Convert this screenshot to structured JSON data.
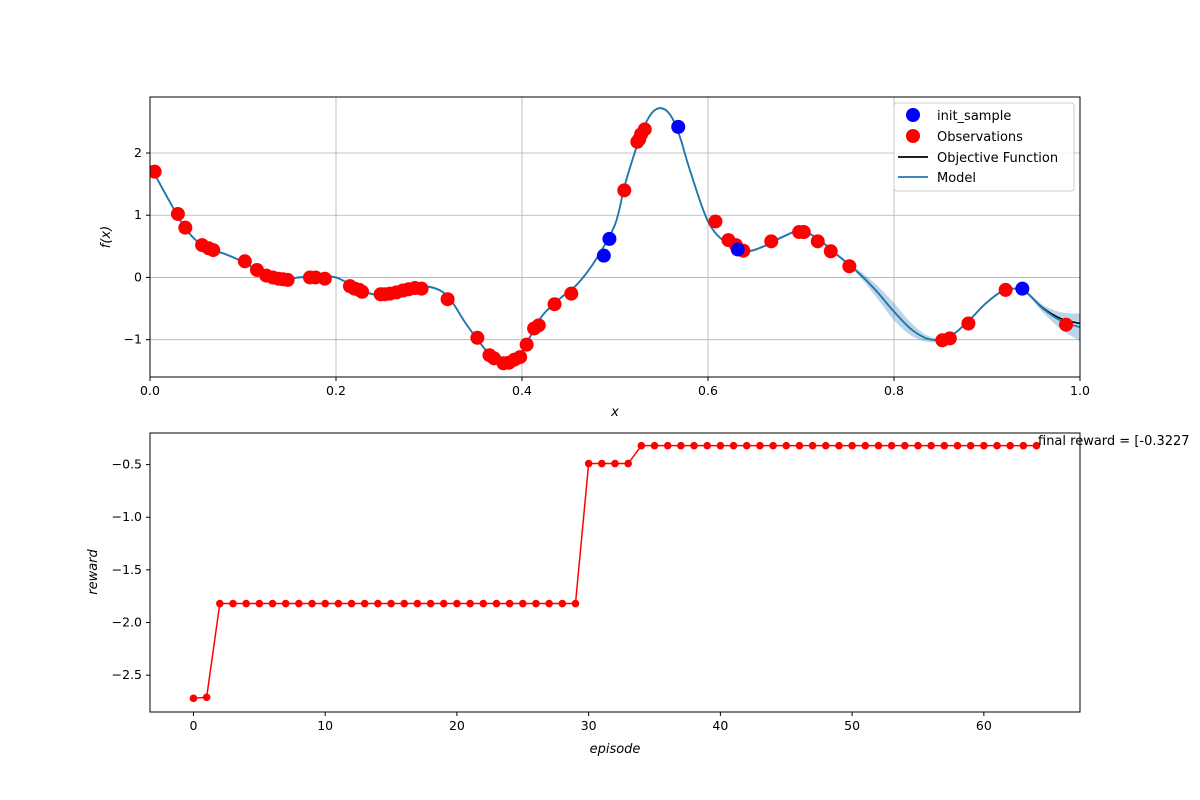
{
  "chart_data": [
    {
      "type": "line",
      "xlabel": "x",
      "ylabel": "f(x)",
      "xlim": [
        0.0,
        1.0
      ],
      "ylim": [
        -1.6,
        2.9
      ],
      "xticks": [
        "0.0",
        "0.2",
        "0.4",
        "0.6",
        "0.8",
        "1.0"
      ],
      "yticks": [
        "−1",
        "0",
        "1",
        "2"
      ],
      "grid": true,
      "legend_position": "top-right",
      "legend": [
        "init_sample",
        "Observations",
        "Objective Function",
        "Model"
      ],
      "colors": {
        "init_sample": "#0000ff",
        "observations": "#ff0000",
        "objective": "#000000",
        "model": "#1f77b4",
        "band": "#1f77b4"
      },
      "curve": {
        "x": [
          0.0,
          0.02,
          0.04,
          0.06,
          0.08,
          0.1,
          0.12,
          0.14,
          0.16,
          0.18,
          0.2,
          0.22,
          0.24,
          0.26,
          0.28,
          0.3,
          0.32,
          0.34,
          0.36,
          0.37,
          0.38,
          0.39,
          0.4,
          0.42,
          0.44,
          0.46,
          0.48,
          0.5,
          0.51,
          0.52,
          0.53,
          0.54,
          0.55,
          0.56,
          0.57,
          0.58,
          0.6,
          0.62,
          0.64,
          0.66,
          0.68,
          0.7,
          0.72,
          0.74,
          0.76,
          0.78,
          0.8,
          0.82,
          0.84,
          0.86,
          0.88,
          0.9,
          0.92,
          0.94,
          0.96,
          0.98,
          1.0
        ],
        "y": [
          1.8,
          1.25,
          0.75,
          0.48,
          0.38,
          0.25,
          0.08,
          -0.02,
          0.0,
          0.02,
          0.0,
          -0.15,
          -0.27,
          -0.25,
          -0.18,
          -0.15,
          -0.3,
          -0.75,
          -1.15,
          -1.3,
          -1.38,
          -1.35,
          -1.2,
          -0.65,
          -0.35,
          -0.1,
          0.3,
          0.85,
          1.45,
          1.95,
          2.38,
          2.65,
          2.72,
          2.6,
          2.25,
          1.75,
          0.9,
          0.55,
          0.42,
          0.5,
          0.65,
          0.75,
          0.6,
          0.35,
          0.1,
          -0.2,
          -0.55,
          -0.85,
          -1.0,
          -0.95,
          -0.7,
          -0.4,
          -0.2,
          -0.22,
          -0.5,
          -0.7,
          -0.8
        ]
      },
      "init_sample": {
        "x": [
          0.488,
          0.494,
          0.568,
          0.632,
          0.938
        ],
        "y": [
          0.35,
          0.62,
          2.42,
          0.45,
          -0.18
        ]
      },
      "observations": {
        "x": [
          0.005,
          0.03,
          0.038,
          0.056,
          0.063,
          0.068,
          0.102,
          0.115,
          0.125,
          0.132,
          0.138,
          0.143,
          0.148,
          0.172,
          0.178,
          0.188,
          0.215,
          0.22,
          0.225,
          0.228,
          0.248,
          0.252,
          0.258,
          0.265,
          0.272,
          0.278,
          0.285,
          0.292,
          0.32,
          0.352,
          0.365,
          0.37,
          0.38,
          0.386,
          0.392,
          0.398,
          0.405,
          0.413,
          0.418,
          0.435,
          0.453,
          0.51,
          0.524,
          0.526,
          0.528,
          0.532,
          0.608,
          0.622,
          0.63,
          0.638,
          0.668,
          0.698,
          0.703,
          0.718,
          0.732,
          0.752,
          0.852,
          0.86,
          0.88,
          0.92,
          0.985
        ],
        "y": [
          1.7,
          1.02,
          0.8,
          0.52,
          0.47,
          0.44,
          0.26,
          0.12,
          0.03,
          0.0,
          -0.02,
          -0.03,
          -0.04,
          0.0,
          0.0,
          -0.02,
          -0.14,
          -0.18,
          -0.2,
          -0.23,
          -0.27,
          -0.27,
          -0.26,
          -0.24,
          -0.21,
          -0.19,
          -0.17,
          -0.18,
          -0.35,
          -0.97,
          -1.25,
          -1.3,
          -1.38,
          -1.37,
          -1.32,
          -1.28,
          -1.08,
          -0.82,
          -0.77,
          -0.43,
          -0.26,
          1.4,
          2.18,
          2.22,
          2.3,
          2.38,
          0.9,
          0.6,
          0.52,
          0.43,
          0.58,
          0.73,
          0.73,
          0.58,
          0.42,
          0.18,
          -1.01,
          -0.98,
          -0.74,
          -0.2,
          -0.76
        ]
      }
    },
    {
      "type": "line",
      "xlabel": "episode",
      "ylabel": "reward",
      "xlim": [
        -3.3,
        67.3
      ],
      "ylim": [
        -2.85,
        -0.2
      ],
      "xticks": [
        "0",
        "10",
        "20",
        "30",
        "40",
        "50",
        "60"
      ],
      "yticks": [
        "−2.5",
        "−2.0",
        "−1.5",
        "−1.0",
        "−0.5"
      ],
      "grid": false,
      "color": "#ff0000",
      "x": [
        0,
        1,
        2,
        3,
        4,
        5,
        6,
        7,
        8,
        9,
        10,
        11,
        12,
        13,
        14,
        15,
        16,
        17,
        18,
        19,
        20,
        21,
        22,
        23,
        24,
        25,
        26,
        27,
        28,
        29,
        30,
        31,
        32,
        33,
        34,
        35,
        36,
        37,
        38,
        39,
        40,
        41,
        42,
        43,
        44,
        45,
        46,
        47,
        48,
        49,
        50,
        51,
        52,
        53,
        54,
        55,
        56,
        57,
        58,
        59,
        60,
        61,
        62,
        63,
        64
      ],
      "values": [
        -2.72,
        -2.71,
        -1.82,
        -1.82,
        -1.82,
        -1.82,
        -1.82,
        -1.82,
        -1.82,
        -1.82,
        -1.82,
        -1.82,
        -1.82,
        -1.82,
        -1.82,
        -1.82,
        -1.82,
        -1.82,
        -1.82,
        -1.82,
        -1.82,
        -1.82,
        -1.82,
        -1.82,
        -1.82,
        -1.82,
        -1.82,
        -1.82,
        -1.82,
        -1.82,
        -0.49,
        -0.49,
        -0.49,
        -0.49,
        -0.32,
        -0.32,
        -0.32,
        -0.32,
        -0.32,
        -0.32,
        -0.32,
        -0.32,
        -0.32,
        -0.32,
        -0.32,
        -0.32,
        -0.32,
        -0.32,
        -0.32,
        -0.32,
        -0.32,
        -0.32,
        -0.32,
        -0.32,
        -0.32,
        -0.32,
        -0.32,
        -0.32,
        -0.32,
        -0.32,
        -0.32,
        -0.32,
        -0.32,
        -0.32,
        -0.32
      ],
      "annotation": "final reward = [-0.3227"
    }
  ]
}
